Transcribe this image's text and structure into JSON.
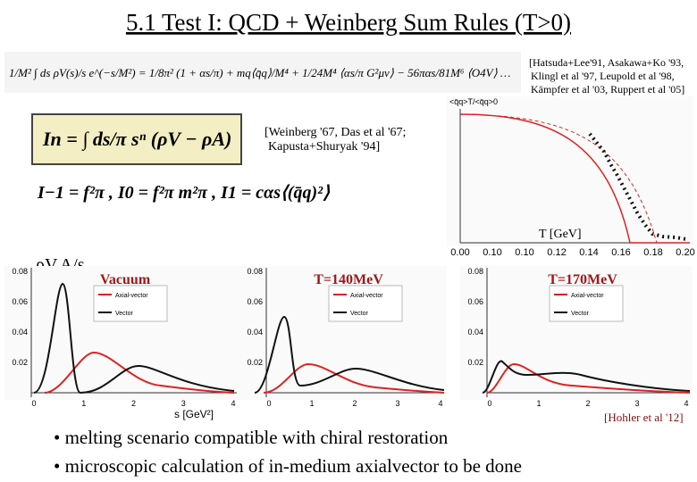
{
  "header": {
    "title": "5.1 Test I: QCD + Weinberg Sum Rules (T>0)"
  },
  "sum_rule": "1/M² ∫ ds ρV(s)/s e^(−s/M²) = 1/8π² (1 + αs/π) + mq⟨q̄q⟩/M⁴ + 1/24M⁴ ⟨αs/π G²μν⟩ − 56παs/81M⁶ ⟨O4V⟩ …",
  "qcd_refs": [
    "[Hatsuda+Lee'91, Asakawa+Ko '93,",
    "Klingl et al '97, Leupold et al '98,",
    "Kämpfer et al '03, Ruppert et al '05]"
  ],
  "weinberg_box": "In = ∫ ds/π sⁿ (ρV − ρA)",
  "weinberg_refs": [
    "[Weinberg '67, Das et al '67;",
    "Kapusta+Shuryak '94]"
  ],
  "moments": "I−1 = f²π ,   I0 = f²π m²π ,   I1 = cαs⟨(q̄q)²⟩",
  "condensate_plot": {
    "y_label": "<q̄q>T/<q̄q>0",
    "x_label": "T [GeV]",
    "x_ticks": [
      "0.00",
      "0.10",
      "0.10",
      "0.12",
      "0.14",
      "0.16",
      "0.18",
      "0.20"
    ]
  },
  "spectral_label": "ρV,A/s",
  "spectral_plots": [
    {
      "title": "Vacuum",
      "y_ticks": [
        "0.08",
        "0.06",
        "0.04",
        "0.02"
      ],
      "x_ticks": [
        "0",
        "1",
        "2",
        "3",
        "4"
      ],
      "legend": [
        "Axial-vector",
        "Vector"
      ]
    },
    {
      "title": "T=140MeV",
      "y_ticks": [
        "0.08",
        "0.06",
        "0.04",
        "0.02"
      ],
      "x_ticks": [
        "0",
        "1",
        "2",
        "3",
        "4"
      ],
      "legend": [
        "Axial-vector",
        "Vector"
      ]
    },
    {
      "title": "T=170MeV",
      "y_ticks": [
        "0.08",
        "0.06",
        "0.04",
        "0.02"
      ],
      "x_ticks": [
        "0",
        "1",
        "2",
        "3",
        "4"
      ],
      "legend": [
        "Axial-vector",
        "Vector"
      ]
    }
  ],
  "s_label": "s [GeV²]",
  "spectral_ref": "[Hohler et al '12]",
  "bullets": [
    "• melting scenario compatible with chiral restoration",
    "• microscopic calculation of in-medium axialvector to be done"
  ]
}
